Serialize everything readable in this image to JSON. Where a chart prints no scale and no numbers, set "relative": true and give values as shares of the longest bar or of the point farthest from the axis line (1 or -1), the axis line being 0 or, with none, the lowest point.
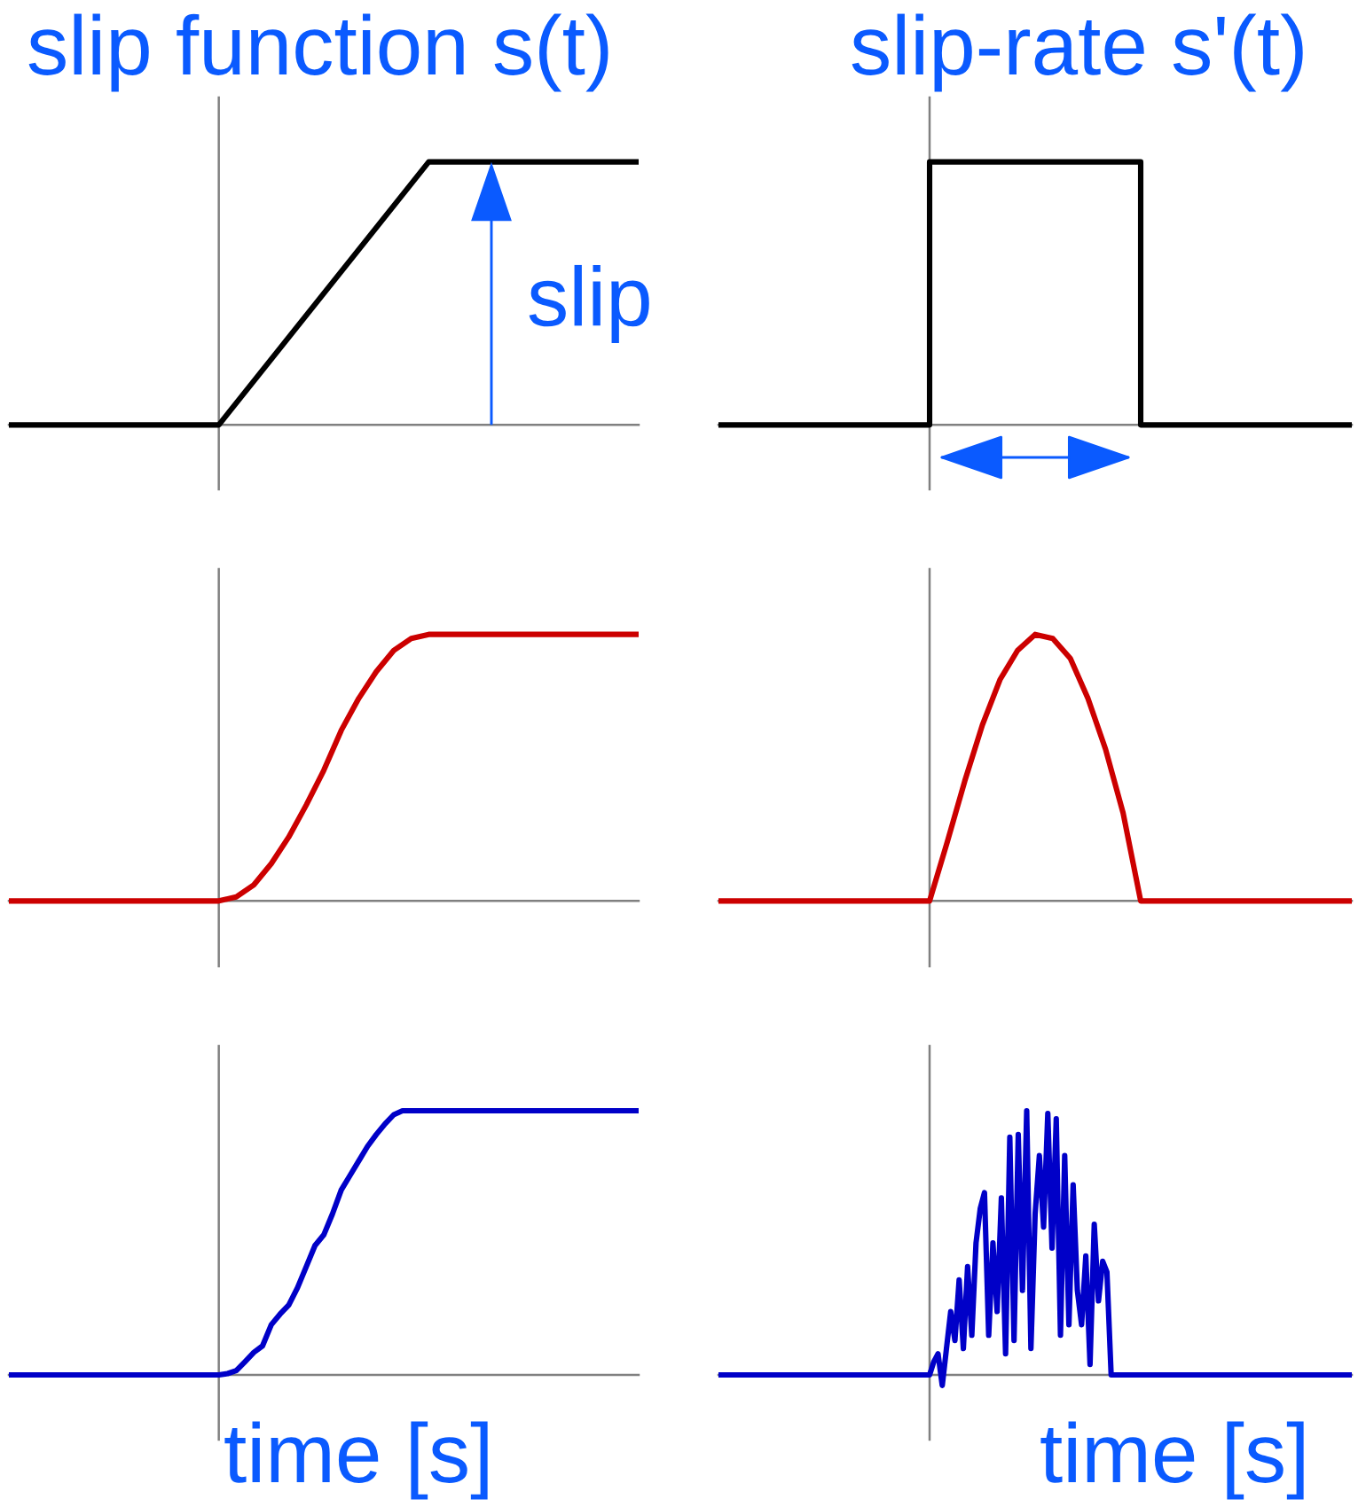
{
  "chart_data": [
    {
      "type": "line",
      "relative": true,
      "title": "slip function s(t)",
      "annotations": [
        {
          "text": "slip",
          "y": 1
        }
      ],
      "categories": [
        null,
        null,
        null,
        null
      ],
      "series": [
        {
          "color": "#000000",
          "values": [
            0,
            0,
            1,
            1
          ]
        }
      ]
    },
    {
      "type": "step",
      "relative": true,
      "title": "slip-rate s'(t)",
      "categories": [
        null,
        null,
        null,
        null
      ],
      "series": [
        {
          "color": "#000000",
          "values": [
            0,
            1,
            0,
            0
          ]
        }
      ]
    },
    {
      "type": "line",
      "relative": true,
      "categories": [
        null,
        null,
        null,
        null,
        null,
        null,
        null,
        null,
        null,
        null,
        null,
        null,
        null,
        null,
        null,
        null,
        null,
        null,
        null,
        null,
        null,
        null,
        null,
        null,
        null,
        null,
        null,
        null,
        null,
        null,
        null,
        null,
        null,
        null,
        null,
        null,
        null
      ],
      "series": [
        {
          "color": "#cc0000",
          "values": [
            0,
            0,
            0,
            0,
            0,
            0,
            0,
            0,
            0,
            0,
            0,
            0,
            0,
            0.015,
            0.06,
            0.14,
            0.24,
            0.36,
            0.49,
            0.64,
            0.76,
            0.86,
            0.94,
            0.985,
            1,
            1,
            1,
            1,
            1,
            1,
            1,
            1,
            1,
            1,
            1,
            1,
            1
          ]
        }
      ]
    },
    {
      "type": "line",
      "relative": true,
      "categories": [
        null,
        null,
        null,
        null,
        null,
        null,
        null,
        null,
        null,
        null,
        null,
        null,
        null,
        null,
        null,
        null,
        null,
        null,
        null,
        null,
        null,
        null,
        null,
        null,
        null,
        null,
        null,
        null,
        null,
        null,
        null,
        null,
        null,
        null,
        null,
        null,
        null
      ],
      "series": [
        {
          "color": "#cc0000",
          "values": [
            0,
            0,
            0,
            0,
            0,
            0,
            0,
            0,
            0,
            0,
            0,
            0,
            0,
            0.22,
            0.45,
            0.66,
            0.83,
            0.94,
            1,
            0.985,
            0.91,
            0.76,
            0.57,
            0.33,
            0,
            0,
            0,
            0,
            0,
            0,
            0,
            0,
            0,
            0,
            0,
            0,
            0
          ]
        }
      ]
    },
    {
      "type": "line",
      "relative": true,
      "xlabel": "time [s]",
      "categories": [
        null,
        null,
        null,
        null,
        null,
        null,
        null,
        null,
        null,
        null,
        null,
        null,
        null,
        null,
        null,
        null,
        null,
        null,
        null,
        null,
        null,
        null,
        null,
        null,
        null,
        null,
        null,
        null,
        null,
        null,
        null,
        null,
        null,
        null,
        null,
        null,
        null,
        null,
        null,
        null,
        null,
        null,
        null,
        null,
        null,
        null,
        null,
        null,
        null,
        null,
        null,
        null,
        null,
        null,
        null,
        null,
        null,
        null,
        null,
        null,
        null,
        null,
        null,
        null,
        null,
        null,
        null,
        null,
        null,
        null,
        null,
        null,
        null
      ],
      "series": [
        {
          "color": "#0000c8",
          "values": [
            0,
            0,
            0,
            0,
            0,
            0,
            0,
            0,
            0,
            0,
            0,
            0,
            0,
            0,
            0,
            0,
            0,
            0,
            0,
            0,
            0,
            0,
            0,
            0,
            0,
            0.005,
            0.016,
            0.05,
            0.085,
            0.11,
            0.19,
            0.23,
            0.265,
            0.33,
            0.41,
            0.49,
            0.53,
            0.61,
            0.7,
            0.755,
            0.81,
            0.865,
            0.91,
            0.95,
            0.985,
            1,
            1,
            1,
            1,
            1,
            1,
            1,
            1,
            1,
            1,
            1,
            1,
            1,
            1,
            1,
            1,
            1,
            1,
            1,
            1,
            1,
            1,
            1,
            1,
            1,
            1,
            1,
            1
          ]
        }
      ]
    },
    {
      "type": "line",
      "relative": true,
      "xlabel": "time [s]",
      "categories": [
        null,
        null,
        null,
        null,
        null,
        null,
        null,
        null,
        null,
        null,
        null,
        null,
        null,
        null,
        null,
        null,
        null,
        null,
        null,
        null,
        null,
        null,
        null,
        null,
        null,
        null,
        null,
        null,
        null,
        null,
        null,
        null,
        null,
        null,
        null,
        null,
        null,
        null,
        null,
        null,
        null,
        null,
        null,
        null,
        null,
        null,
        null,
        null,
        null,
        null,
        null,
        null,
        null,
        null,
        null,
        null,
        null,
        null,
        null,
        null,
        null,
        null,
        null,
        null,
        null,
        null,
        null,
        null,
        null,
        null,
        null,
        null,
        null,
        null,
        null,
        null,
        null,
        null,
        null,
        null,
        null,
        null,
        null,
        null,
        null,
        null,
        null,
        null,
        null,
        null,
        null,
        null,
        null,
        null,
        null,
        null,
        null,
        null,
        null,
        null,
        null,
        null,
        null,
        null,
        null,
        null,
        null,
        null,
        null,
        null,
        null,
        null,
        null,
        null,
        null,
        null,
        null,
        null,
        null,
        null,
        null,
        null,
        null,
        null,
        null,
        null,
        null,
        null,
        null,
        null,
        null,
        null,
        null,
        null,
        null,
        null,
        null,
        null,
        null,
        null,
        null,
        null,
        null,
        null,
        null,
        null,
        null,
        null,
        null,
        null,
        null
      ],
      "series": [
        {
          "color": "#0000c8",
          "values": [
            0,
            0,
            0,
            0,
            0,
            0,
            0,
            0,
            0,
            0,
            0,
            0,
            0,
            0,
            0,
            0,
            0,
            0,
            0,
            0,
            0,
            0,
            0,
            0,
            0,
            0,
            0,
            0,
            0,
            0,
            0,
            0,
            0,
            0,
            0,
            0,
            0,
            0,
            0,
            0,
            0,
            0,
            0,
            0,
            0,
            0,
            0,
            0,
            0,
            0,
            0,
            0.05,
            0.08,
            -0.04,
            0.1,
            0.24,
            0.13,
            0.36,
            0.1,
            0.41,
            0.15,
            0.5,
            0.63,
            0.69,
            0.15,
            0.5,
            0.24,
            0.67,
            0.08,
            0.9,
            0.13,
            0.91,
            0.32,
            1,
            0.1,
            0.61,
            0.83,
            0.56,
            0.99,
            0.48,
            0.97,
            0.15,
            0.83,
            0.19,
            0.72,
            0.32,
            0.19,
            0.45,
            0.04,
            0.57,
            0.28,
            0.43,
            0.39,
            0,
            0,
            0,
            0,
            0,
            0,
            0,
            0,
            0,
            0,
            0,
            0,
            0,
            0,
            0,
            0,
            0,
            0,
            0,
            0,
            0,
            0,
            0,
            0,
            0,
            0,
            0,
            0,
            0,
            0,
            0,
            0,
            0,
            0,
            0,
            0,
            0,
            0,
            0,
            0,
            0,
            0,
            0,
            0,
            0,
            0,
            0,
            0,
            0,
            0,
            0,
            0,
            0,
            0,
            0,
            0,
            0,
            0
          ]
        }
      ]
    }
  ]
}
